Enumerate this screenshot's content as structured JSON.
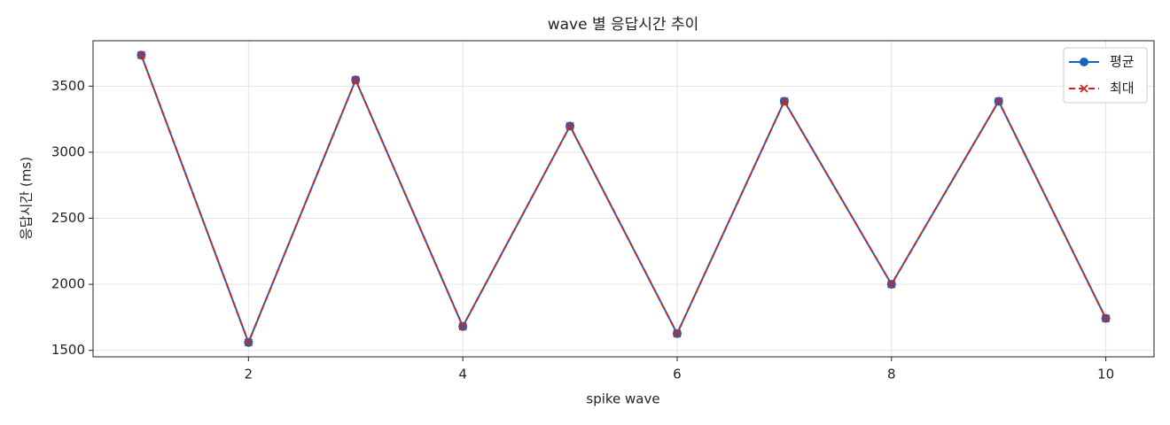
{
  "chart_data": {
    "type": "line",
    "title": "wave 별 응답시간 추이",
    "x_label": "spike wave",
    "y_label": "응답시간 (ms)",
    "x": [
      1,
      2,
      3,
      4,
      5,
      6,
      7,
      8,
      9,
      10
    ],
    "series": [
      {
        "name": "평균",
        "color": "#1565c0",
        "marker": "o",
        "linestyle": "solid",
        "values": [
          3735,
          1560,
          3547,
          1681,
          3198,
          1627,
          3386,
          2000,
          3386,
          1742
        ]
      },
      {
        "name": "최대",
        "color": "#c62828",
        "marker": "x",
        "linestyle": "dashed",
        "values": [
          3735,
          1560,
          3547,
          1681,
          3198,
          1627,
          3386,
          2000,
          3386,
          1742
        ]
      }
    ],
    "xlim": [
      0.55,
      10.45
    ],
    "xticks": [
      2,
      4,
      6,
      8,
      10
    ],
    "ylim": [
      1451,
      3844
    ],
    "yticks": [
      1500,
      2000,
      2500,
      3000,
      3500
    ],
    "grid": true,
    "legend": "upper right"
  }
}
